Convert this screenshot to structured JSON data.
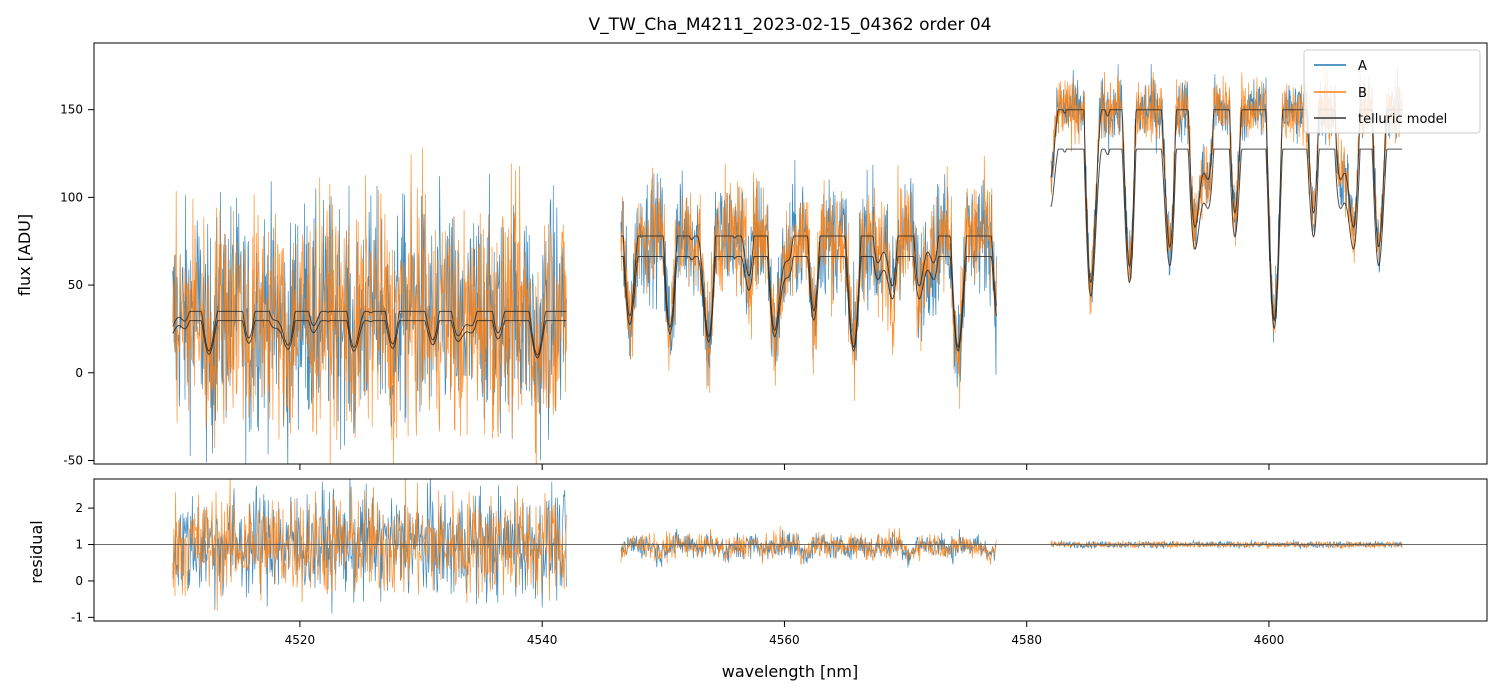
{
  "chart_data": [
    {
      "panel": "main",
      "type": "line",
      "title": "V_TW_Cha_M4211_2023-02-15_04362  order 04",
      "xlabel": "",
      "ylabel": "flux [ADU]",
      "xlim": [
        4503,
        4618
      ],
      "ylim": [
        -52,
        188
      ],
      "yticks": [
        -50,
        0,
        50,
        100,
        150
      ],
      "xticks": [
        4520,
        4540,
        4560,
        4580,
        4600
      ],
      "legend": {
        "placement": "top-right",
        "entries": [
          "A",
          "B",
          "telluric model"
        ]
      },
      "segments": [
        {
          "x_start": 4509.5,
          "x_end": 4542.0,
          "continuum": 35,
          "depth": 25,
          "noise_amplitude": 75
        },
        {
          "x_start": 4546.5,
          "x_end": 4577.5,
          "continuum": 78,
          "depth": 70,
          "noise_amplitude": 40
        },
        {
          "x_start": 4582.0,
          "x_end": 4611.0,
          "continuum": 150,
          "depth": 120,
          "noise_amplitude": 22
        }
      ],
      "series": [
        {
          "name": "A",
          "color": "#1f77b4",
          "description": "noisy observed spectrum, nod A"
        },
        {
          "name": "B",
          "color": "#ff7f0e",
          "description": "noisy observed spectrum, nod B"
        },
        {
          "name": "telluric model",
          "color": "#000000",
          "description": "smooth telluric absorption model"
        }
      ]
    },
    {
      "panel": "residual",
      "type": "line",
      "title": "",
      "xlabel": "wavelength [nm]",
      "ylabel": "residual",
      "xlim": [
        4503,
        4618
      ],
      "ylim": [
        -1.1,
        2.8
      ],
      "yticks": [
        -1,
        0,
        1,
        2
      ],
      "xticks": [
        4520,
        4540,
        4560,
        4580,
        4600
      ],
      "reference_line": 1,
      "segments": [
        {
          "x_start": 4509.5,
          "x_end": 4542.0,
          "center": 1.0,
          "amplitude": 1.9
        },
        {
          "x_start": 4546.5,
          "x_end": 4577.5,
          "center": 1.0,
          "amplitude": 0.45
        },
        {
          "x_start": 4582.0,
          "x_end": 4611.0,
          "center": 1.0,
          "amplitude": 0.12
        }
      ],
      "series": [
        {
          "name": "A",
          "color": "#1f77b4"
        },
        {
          "name": "B",
          "color": "#ff7f0e"
        }
      ]
    }
  ]
}
